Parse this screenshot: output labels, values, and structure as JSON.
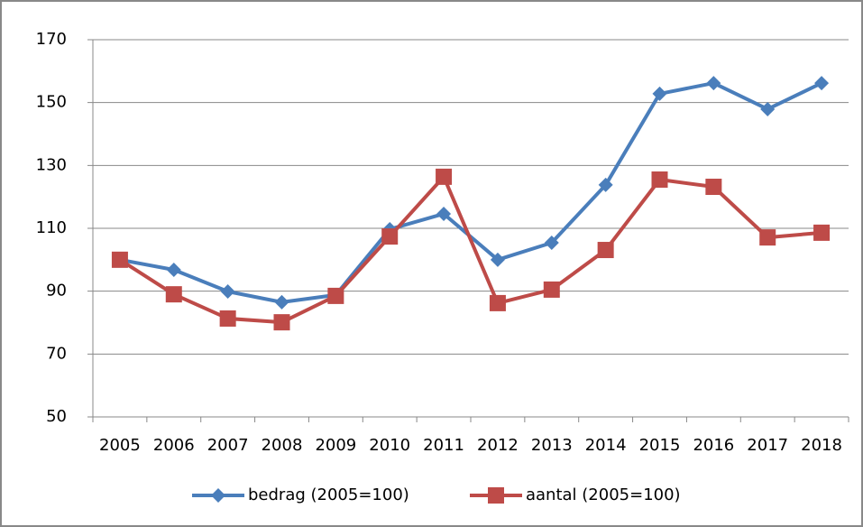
{
  "chart_data": {
    "type": "line",
    "categories": [
      "2005",
      "2006",
      "2007",
      "2008",
      "2009",
      "2010",
      "2011",
      "2012",
      "2013",
      "2014",
      "2015",
      "2016",
      "2017",
      "2018"
    ],
    "series": [
      {
        "name": "bedrag (2005=100)",
        "color": "#4a7ebb",
        "marker": "diamond",
        "values": [
          100,
          96.8,
          89.9,
          86.5,
          88.8,
          109.7,
          114.6,
          100,
          105.4,
          123.8,
          152.8,
          156.2,
          147.9,
          156.2
        ]
      },
      {
        "name": "aantal (2005=100)",
        "color": "#be4b48",
        "marker": "square",
        "values": [
          100,
          89,
          81.3,
          80.1,
          88.5,
          107.4,
          126.4,
          86.2,
          90.5,
          103.1,
          125.5,
          123.2,
          107.1,
          108.6
        ]
      }
    ],
    "ylim": [
      50,
      170
    ],
    "yticks": [
      50,
      70,
      90,
      110,
      130,
      150,
      170
    ],
    "grid": true,
    "legend": "bottom"
  }
}
